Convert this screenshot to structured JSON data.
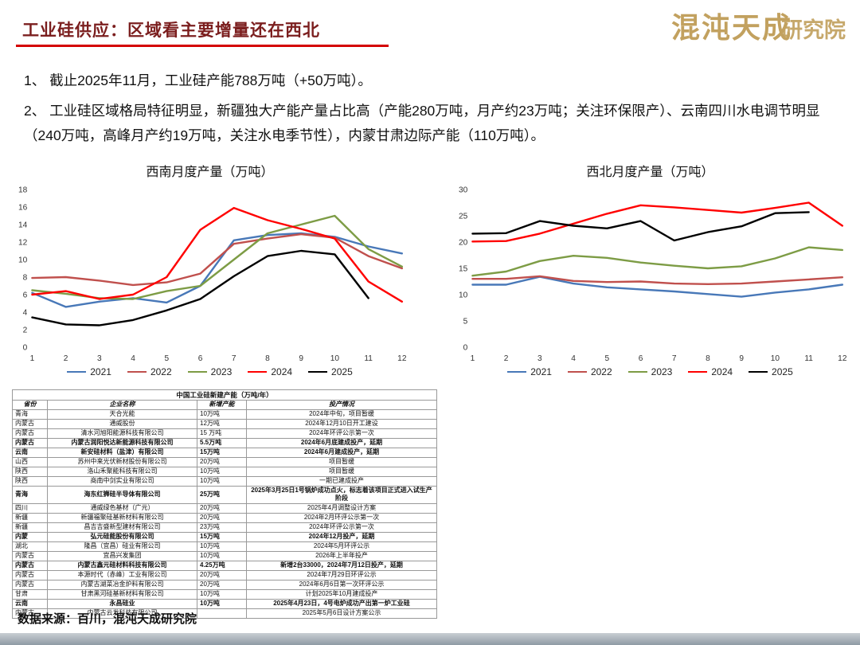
{
  "page": {
    "title": "工业硅供应：区域看主要增量还在西北",
    "logo_main": "混沌天成",
    "logo_sub": "研究院",
    "bullet1": "1、 截止2025年11月，工业硅产能788万吨（+50万吨）。",
    "bullet2": "2、 工业硅区域格局特征明显，新疆独大产能产量占比高（产能280万吨，月产约23万吨；关注环保限产）、云南四川水电调节明显（240万吨，高峰月产约19万吨，关注水电季节性），内蒙甘肃边际产能（110万吨）。",
    "source": "数据来源：百川，混沌天成研究院"
  },
  "colors": {
    "title_maroon": "#7b1e1e",
    "rule_red": "#d40000",
    "logo_gold": "#c2a15f",
    "s2021": "#4878b8",
    "s2022": "#c0504d",
    "s2023": "#7d9c45",
    "s2024": "#ff0000",
    "s2025": "#000000"
  },
  "chart_data": [
    {
      "type": "line",
      "title": "西南月度产量（万吨）",
      "x": [
        1,
        2,
        3,
        4,
        5,
        6,
        7,
        8,
        9,
        10,
        11,
        12
      ],
      "ylim": [
        0,
        18
      ],
      "yticks": [
        0,
        2,
        4,
        6,
        8,
        10,
        12,
        14,
        16,
        18
      ],
      "grid": false,
      "legend_position": "bottom",
      "series": [
        {
          "name": "2021",
          "color": "#4878b8",
          "values": [
            6.2,
            4.6,
            5.2,
            5.6,
            5.1,
            7.0,
            12.2,
            12.8,
            13.0,
            12.6,
            11.5,
            10.7
          ]
        },
        {
          "name": "2022",
          "color": "#c0504d",
          "values": [
            7.9,
            8.0,
            7.6,
            7.1,
            7.4,
            8.4,
            11.8,
            12.4,
            12.9,
            12.5,
            10.4,
            9.0
          ]
        },
        {
          "name": "2023",
          "color": "#7d9c45",
          "values": [
            6.5,
            6.1,
            5.6,
            5.5,
            6.4,
            7.0,
            10.0,
            13.0,
            14.0,
            15.0,
            11.2,
            9.2
          ]
        },
        {
          "name": "2024",
          "color": "#ff0000",
          "values": [
            6.0,
            6.4,
            5.5,
            6.0,
            8.0,
            13.4,
            15.9,
            14.5,
            13.5,
            12.4,
            7.5,
            5.2
          ]
        },
        {
          "name": "2025",
          "color": "#000000",
          "values": [
            3.4,
            2.6,
            2.5,
            3.1,
            4.2,
            5.5,
            8.1,
            10.4,
            11.0,
            10.6,
            5.6,
            null
          ]
        }
      ]
    },
    {
      "type": "line",
      "title": "西北月度产量（万吨）",
      "x": [
        1,
        2,
        3,
        4,
        5,
        6,
        7,
        8,
        9,
        10,
        11,
        12
      ],
      "ylim": [
        0,
        30
      ],
      "yticks": [
        0,
        5,
        10,
        15,
        20,
        25,
        30
      ],
      "grid": false,
      "legend_position": "bottom",
      "series": [
        {
          "name": "2021",
          "color": "#4878b8",
          "values": [
            11.9,
            11.9,
            13.4,
            12.1,
            11.4,
            11.0,
            10.6,
            10.1,
            9.6,
            10.4,
            11.0,
            11.9
          ]
        },
        {
          "name": "2022",
          "color": "#c0504d",
          "values": [
            13.0,
            13.0,
            13.5,
            12.6,
            12.4,
            12.5,
            12.1,
            12.0,
            12.1,
            12.5,
            12.9,
            13.3
          ]
        },
        {
          "name": "2023",
          "color": "#7d9c45",
          "values": [
            13.6,
            14.4,
            16.4,
            17.4,
            17.0,
            16.1,
            15.5,
            15.0,
            15.4,
            16.9,
            19.0,
            18.5
          ]
        },
        {
          "name": "2024",
          "color": "#ff0000",
          "values": [
            20.1,
            20.2,
            21.6,
            23.5,
            25.4,
            27.0,
            26.6,
            26.1,
            25.6,
            26.5,
            27.5,
            23.1
          ]
        },
        {
          "name": "2025",
          "color": "#000000",
          "values": [
            21.6,
            21.7,
            24.0,
            23.1,
            22.6,
            24.0,
            20.3,
            21.9,
            23.0,
            25.5,
            25.7,
            null
          ]
        }
      ]
    }
  ],
  "table": {
    "title": "中国工业硅新建产能（万吨/年）",
    "headers": [
      "省份",
      "企业名称",
      "新增产能",
      "投产情况"
    ],
    "rows": [
      {
        "cells": [
          "青海",
          "天合光能",
          "10万吨",
          "2024年中旬，项目暂缓"
        ],
        "bold": false
      },
      {
        "cells": [
          "内蒙古",
          "通威股份",
          "12万吨",
          "2024年12月10日开工建设"
        ],
        "bold": false
      },
      {
        "cells": [
          "内蒙古",
          "清水河旭阳能源科技有限公司",
          "15 万吨",
          "2024年环评公示第一次"
        ],
        "bold": false
      },
      {
        "cells": [
          "内蒙古",
          "内蒙古润阳悦达新能源科技有限公司",
          "5.5万吨",
          "2024年6月底建成投产，延期"
        ],
        "bold": true
      },
      {
        "cells": [
          "云南",
          "新安硅材料（盐津）有限公司",
          "15万吨",
          "2024年6月建成投产，延期"
        ],
        "bold": true
      },
      {
        "cells": [
          "山西",
          "苏州中来光伏新材股份有限公司",
          "20万吨",
          "项目暂缓"
        ],
        "bold": false
      },
      {
        "cells": [
          "陕西",
          "洛山禾聚能科技有限公司",
          "10万吨",
          "项目暂缓"
        ],
        "bold": false
      },
      {
        "cells": [
          "陕西",
          "商南中剑实业有限公司",
          "10万吨",
          "一期已建成投产"
        ],
        "bold": false
      },
      {
        "cells": [
          "青海",
          "海东红狮硅半导体有限公司",
          "25万吨",
          "2025年3月25日1号锅炉成功点火，标志着该项目正式进入试生产阶段"
        ],
        "bold": true
      },
      {
        "cells": [
          "四川",
          "通威绿色基材（广元）",
          "20万吨",
          "2025年4月调整设计方案"
        ],
        "bold": false
      },
      {
        "cells": [
          "新疆",
          "新疆福聚硅基新材料有限公司",
          "20万吨",
          "2024年2月环评公示第一次"
        ],
        "bold": false
      },
      {
        "cells": [
          "新疆",
          "昌吉吉盛新型建材有限公司",
          "23万吨",
          "2024年环评公示第一次"
        ],
        "bold": false
      },
      {
        "cells": [
          "内蒙",
          "弘元硅能股份有限公司",
          "15万吨",
          "2024年12月投产，延期"
        ],
        "bold": true
      },
      {
        "cells": [
          "湖北",
          "隆昌（宜昌）硅业有限公司",
          "10万吨",
          "2024年5月环评公示"
        ],
        "bold": false
      },
      {
        "cells": [
          "内蒙古",
          "宜昌兴发集团",
          "10万吨",
          "2026年上半年投产"
        ],
        "bold": false
      },
      {
        "cells": [
          "内蒙古",
          "内蒙古鑫元硅材料科技有限公司",
          "4.25万吨",
          "新增2台33000，2024年7月12日投产，延期"
        ],
        "bold": true
      },
      {
        "cells": [
          "内蒙古",
          "本源时代（赤峰）工业有限公司",
          "20万吨",
          "2024年7月29日环评公示"
        ],
        "bold": false
      },
      {
        "cells": [
          "内蒙古",
          "内蒙古湖菜冶金炉料有限公司",
          "20万吨",
          "2024年6月6日第一次环评公示"
        ],
        "bold": false
      },
      {
        "cells": [
          "甘肃",
          "甘肃黑河硅基新材料有限公司",
          "10万吨",
          "计划2025年10月建成投产"
        ],
        "bold": false
      },
      {
        "cells": [
          "云南",
          "永昌硅业",
          "10万吨",
          "2025年4月23日，4号电炉成功产出第一炉工业硅"
        ],
        "bold": true
      },
      {
        "cells": [
          "内蒙古",
          "内蒙古云发科技有限公司",
          "",
          "2025年5月6日设计方案公示"
        ],
        "bold": false
      }
    ]
  }
}
